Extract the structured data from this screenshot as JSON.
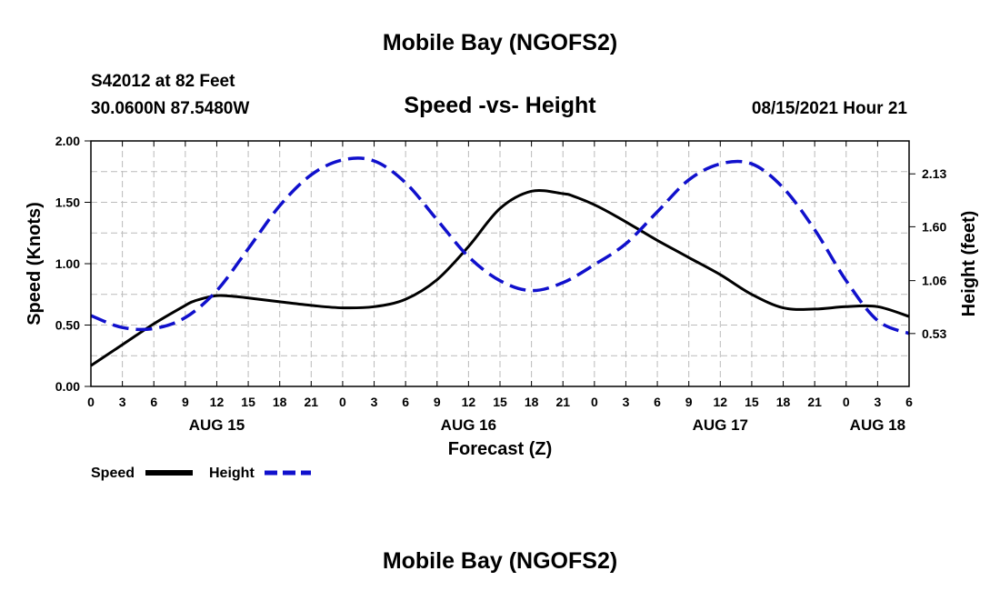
{
  "header": {
    "title_top": "Mobile Bay (NGOFS2)",
    "station": "S42012 at 82 Feet",
    "coords": "30.0600N  87.5480W",
    "subtitle": "Speed -vs- Height",
    "timestamp": "08/15/2021 Hour 21",
    "title_bottom": "Mobile Bay (NGOFS2)"
  },
  "legend": {
    "speed_label": "Speed",
    "height_label": "Height"
  },
  "colors": {
    "speed": "#000000",
    "height": "#1010cc",
    "grid": "#bbbbbb"
  },
  "chart_data": {
    "type": "line",
    "title": "Speed -vs- Height",
    "xlabel": "Forecast (Z)",
    "ylabel": "Speed (Knots)",
    "y2label": "Height (feet)",
    "x_hour_range": [
      0,
      78
    ],
    "x_ticks": [
      "0",
      "3",
      "6",
      "9",
      "12",
      "15",
      "18",
      "21",
      "0",
      "3",
      "6",
      "9",
      "12",
      "15",
      "18",
      "21",
      "0",
      "3",
      "6",
      "9",
      "12",
      "15",
      "18",
      "21",
      "0",
      "3",
      "6"
    ],
    "x_day_labels": [
      {
        "label": "AUG 15",
        "hour": 12
      },
      {
        "label": "AUG 16",
        "hour": 36
      },
      {
        "label": "AUG 17",
        "hour": 60
      },
      {
        "label": "AUG 18",
        "hour": 75
      }
    ],
    "ylim": [
      0,
      2
    ],
    "y_ticks": [
      "0.00",
      "0.50",
      "1.00",
      "1.50",
      "2.00"
    ],
    "y2lim": [
      0,
      2.46
    ],
    "y2_ticks": [
      "0.53",
      "1.06",
      "1.60",
      "2.13"
    ],
    "grid": true,
    "legend_position": "bottom-left",
    "series": [
      {
        "name": "Speed",
        "axis": "left",
        "style": "solid",
        "x": [
          0,
          3,
          6,
          9,
          10,
          12,
          14,
          16,
          18,
          21,
          24,
          27,
          30,
          33,
          36,
          39,
          42,
          45,
          46,
          48,
          50,
          52,
          54,
          57,
          60,
          63,
          66,
          69,
          72,
          75,
          78
        ],
        "values": [
          0.17,
          0.34,
          0.51,
          0.66,
          0.7,
          0.74,
          0.73,
          0.71,
          0.69,
          0.66,
          0.64,
          0.65,
          0.71,
          0.87,
          1.14,
          1.45,
          1.59,
          1.57,
          1.55,
          1.48,
          1.39,
          1.29,
          1.19,
          1.05,
          0.91,
          0.75,
          0.64,
          0.63,
          0.65,
          0.65,
          0.57
        ]
      },
      {
        "name": "Height",
        "axis": "right",
        "style": "dashed",
        "x": [
          0,
          3,
          6,
          9,
          12,
          15,
          18,
          21,
          24,
          27,
          30,
          33,
          36,
          39,
          42,
          45,
          48,
          51,
          54,
          57,
          60,
          63,
          66,
          69,
          72,
          75,
          78
        ],
        "values": [
          0.71,
          0.59,
          0.58,
          0.69,
          0.96,
          1.38,
          1.81,
          2.12,
          2.27,
          2.26,
          2.04,
          1.67,
          1.3,
          1.06,
          0.96,
          1.04,
          1.22,
          1.43,
          1.75,
          2.07,
          2.23,
          2.23,
          1.99,
          1.57,
          1.06,
          0.66,
          0.53
        ]
      }
    ]
  }
}
